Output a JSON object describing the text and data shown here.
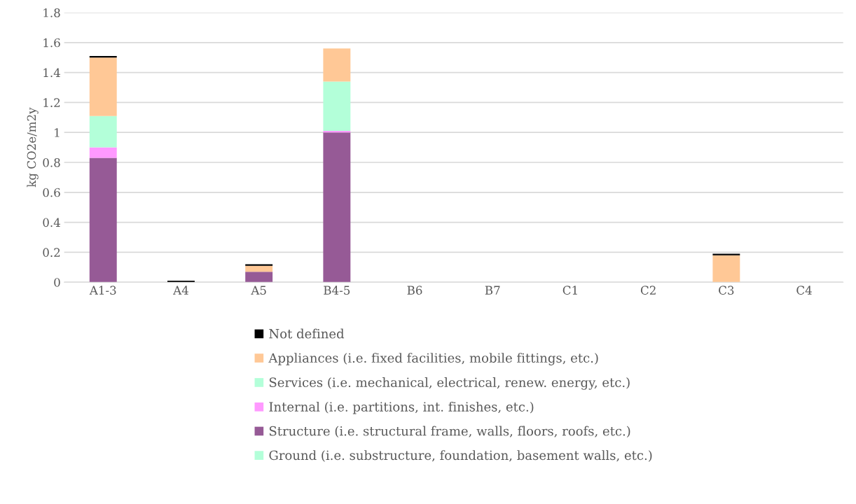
{
  "chart_data": {
    "type": "bar",
    "stacked": true,
    "ylabel": "kg CO2e/m2y",
    "categories": [
      "A1-3",
      "A4",
      "A5",
      "B4-5",
      "B6",
      "B7",
      "C1",
      "C2",
      "C3",
      "C4"
    ],
    "series": [
      {
        "name": "Ground (i.e. substructure, foundation, basement walls, etc.)",
        "color": "#b3ffd9",
        "values": [
          0,
          0,
          0,
          0,
          0,
          0,
          0,
          0,
          0,
          0
        ]
      },
      {
        "name": "Structure (i.e. structural frame, walls, floors, roofs, etc.)",
        "color": "#965a96",
        "values": [
          0.83,
          0,
          0.07,
          1.0,
          0,
          0,
          0,
          0,
          0,
          0
        ]
      },
      {
        "name": "Internal (i.e. partitions, int. finishes, etc.)",
        "color": "#ff99ff",
        "values": [
          0.07,
          0,
          0,
          0.01,
          0,
          0,
          0,
          0,
          0,
          0
        ]
      },
      {
        "name": "Services (i.e. mechanical, electrical, renew. energy, etc.)",
        "color": "#b3ffd9",
        "values": [
          0.21,
          0,
          0,
          0.33,
          0,
          0,
          0,
          0,
          0,
          0
        ]
      },
      {
        "name": "Appliances (i.e. fixed facilities, mobile fittings, etc.)",
        "color": "#ffc896",
        "values": [
          0.39,
          0,
          0.04,
          0.22,
          0,
          0,
          0,
          0,
          0.18,
          0
        ]
      },
      {
        "name": "Not defined",
        "color": "#000000",
        "values": [
          0.01,
          0.01,
          0.01,
          0,
          0,
          0,
          0,
          0,
          0.01,
          0
        ]
      }
    ],
    "ylim": [
      0,
      1.8
    ],
    "yticks": [
      0,
      0.2,
      0.4,
      0.6,
      0.8,
      1,
      1.2,
      1.4,
      1.6,
      1.8
    ],
    "grid": "y",
    "legend": "bottom"
  }
}
